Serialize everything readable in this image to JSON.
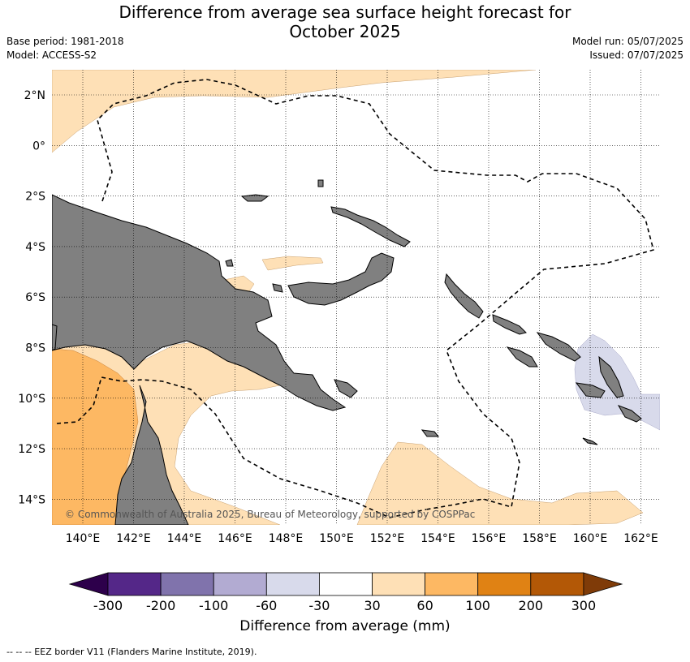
{
  "title": "Difference from average sea surface height forecast for October 2025",
  "title_line1": "Difference from average sea surface height forecast for",
  "title_line2": "October 2025",
  "base_period": "Base period: 1981-2018",
  "model": "Model: ACCESS-S2",
  "model_run": "Model run: 05/07/2025",
  "issued": "Issued: 07/07/2025",
  "copyright": "© Commonwealth of Australia 2025, Bureau of Meteorology, supported by COSPPac",
  "lon_labels": [
    "140°E",
    "142°E",
    "144°E",
    "146°E",
    "148°E",
    "150°E",
    "152°E",
    "154°E",
    "156°E",
    "158°E",
    "160°E",
    "162°E"
  ],
  "lat_labels": [
    "2°N",
    "0°",
    "2°S",
    "4°S",
    "6°S",
    "8°S",
    "10°S",
    "12°S",
    "14°S"
  ],
  "colorbar": {
    "label": "Difference from average (mm)",
    "ticks": [
      "-300",
      "-200",
      "-100",
      "-60",
      "-30",
      "30",
      "60",
      "100",
      "200",
      "300"
    ],
    "colors": {
      "below": "#2d004b",
      "bins": [
        "#542788",
        "#8073ac",
        "#b2abd2",
        "#d8daeb",
        "#ffffff",
        "#fee0b6",
        "#fdb863",
        "#e08214",
        "#b35806"
      ],
      "above": "#7f3b08"
    }
  },
  "land_color": "#808080",
  "footnote": "--  --  -- EEZ border V11 (Flanders Marine Institute, 2019)."
}
